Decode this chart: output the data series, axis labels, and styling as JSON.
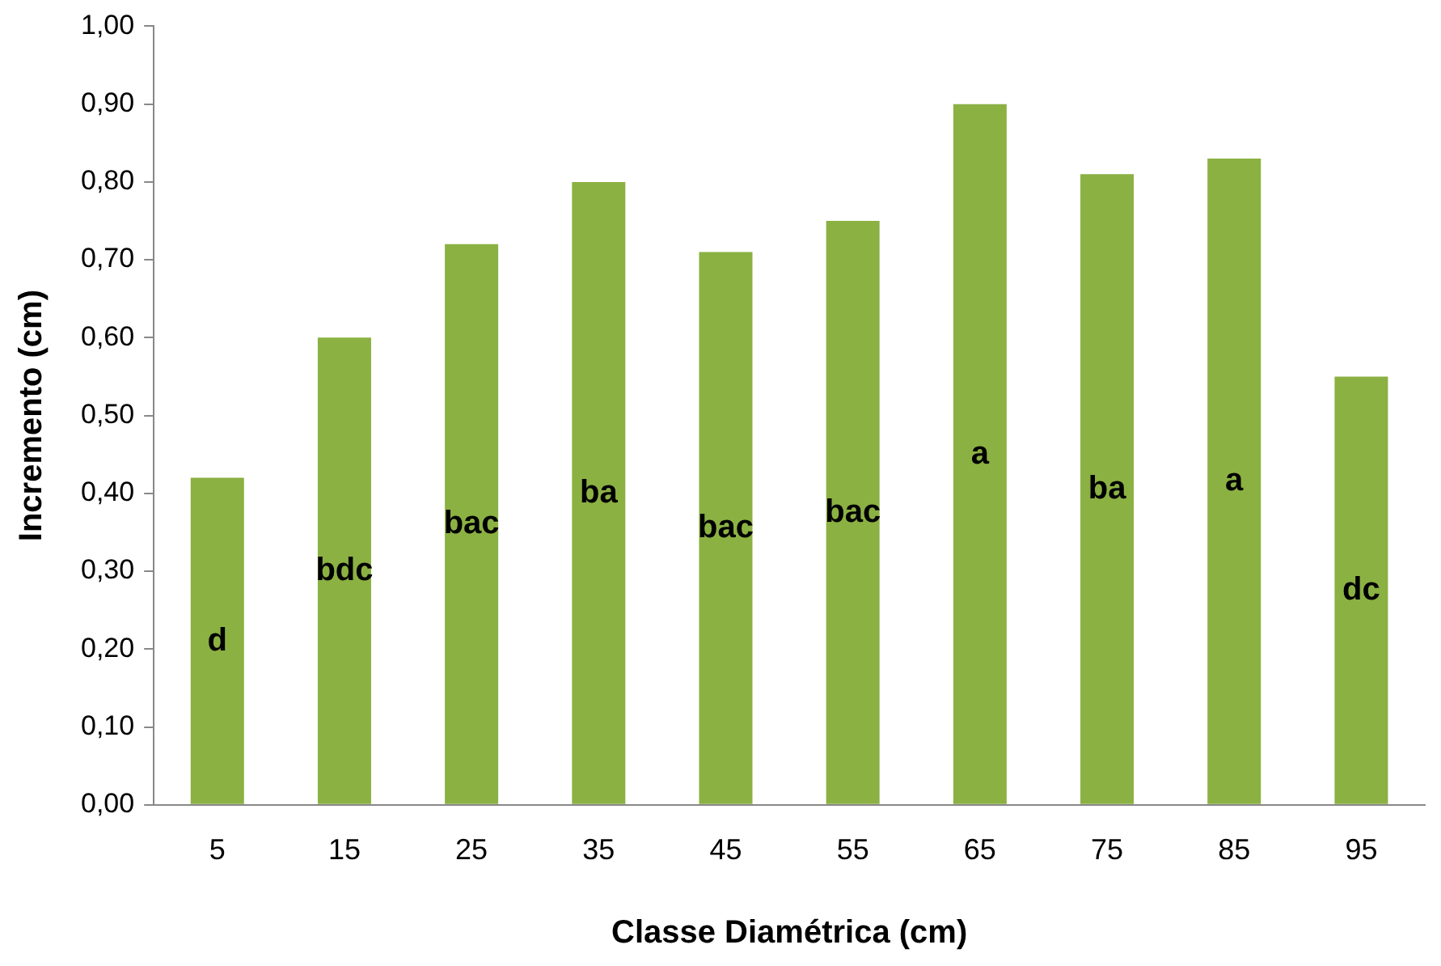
{
  "chart_data": {
    "type": "bar",
    "xlabel": "Classe Diamétrica (cm)",
    "ylabel": "Incremento (cm)",
    "categories": [
      "5",
      "15",
      "25",
      "35",
      "45",
      "55",
      "65",
      "75",
      "85",
      "95"
    ],
    "values": [
      0.42,
      0.6,
      0.72,
      0.8,
      0.71,
      0.75,
      0.9,
      0.81,
      0.83,
      0.55
    ],
    "color": "#8bb143",
    "ylim": [
      0,
      1
    ],
    "yticks": [
      {
        "value": 0,
        "label": "0,00"
      },
      {
        "value": 0.1,
        "label": "0,10"
      },
      {
        "value": 0.2,
        "label": "0,20"
      },
      {
        "value": 0.3,
        "label": "0,30"
      },
      {
        "value": 0.4,
        "label": "0,40"
      },
      {
        "value": 0.5,
        "label": "0,50"
      },
      {
        "value": 0.6,
        "label": "0,60"
      },
      {
        "value": 0.7,
        "label": "0,70"
      },
      {
        "value": 0.8,
        "label": "0,80"
      },
      {
        "value": 0.9,
        "label": "0,90"
      },
      {
        "value": 1,
        "label": "1,00"
      }
    ],
    "grid": false,
    "legend": false,
    "annotations": [
      "d",
      "bdc",
      "bac",
      "ba",
      "bac",
      "bac",
      "a",
      "ba",
      "a",
      "dc"
    ]
  }
}
